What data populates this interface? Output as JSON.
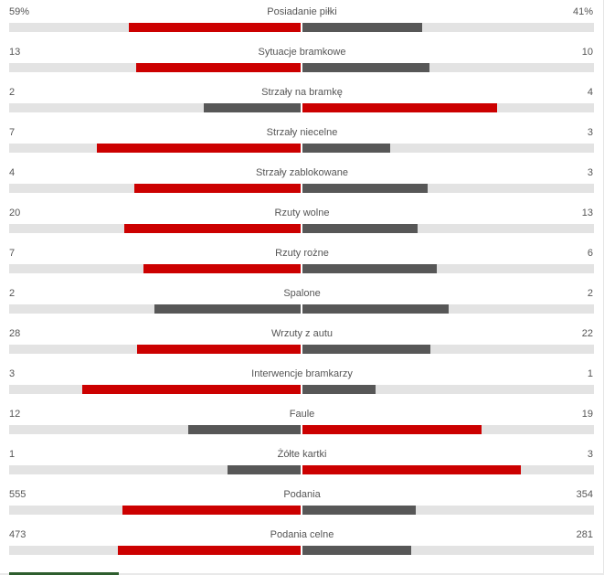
{
  "colors": {
    "leader": "#cc0000",
    "trailer": "#575757",
    "track": "#e3e3e3"
  },
  "stats": [
    {
      "label": "Posiadanie piłki",
      "home": "59%",
      "away": "41%",
      "home_share": 0.59,
      "away_share": 0.41
    },
    {
      "label": "Sytuacje bramkowe",
      "home": "13",
      "away": "10",
      "home_share": 0.565,
      "away_share": 0.435
    },
    {
      "label": "Strzały na bramkę",
      "home": "2",
      "away": "4",
      "home_share": 0.333,
      "away_share": 0.667
    },
    {
      "label": "Strzały niecelne",
      "home": "7",
      "away": "3",
      "home_share": 0.7,
      "away_share": 0.3
    },
    {
      "label": "Strzały zablokowane",
      "home": "4",
      "away": "3",
      "home_share": 0.571,
      "away_share": 0.429
    },
    {
      "label": "Rzuty wolne",
      "home": "20",
      "away": "13",
      "home_share": 0.606,
      "away_share": 0.394
    },
    {
      "label": "Rzuty rożne",
      "home": "7",
      "away": "6",
      "home_share": 0.538,
      "away_share": 0.462
    },
    {
      "label": "Spalone",
      "home": "2",
      "away": "2",
      "home_share": 0.5,
      "away_share": 0.5
    },
    {
      "label": "Wrzuty z autu",
      "home": "28",
      "away": "22",
      "home_share": 0.56,
      "away_share": 0.44
    },
    {
      "label": "Interwencje bramkarzy",
      "home": "3",
      "away": "1",
      "home_share": 0.75,
      "away_share": 0.25
    },
    {
      "label": "Faule",
      "home": "12",
      "away": "19",
      "home_share": 0.387,
      "away_share": 0.613
    },
    {
      "label": "Żółte kartki",
      "home": "1",
      "away": "3",
      "home_share": 0.25,
      "away_share": 0.75
    },
    {
      "label": "Podania",
      "home": "555",
      "away": "354",
      "home_share": 0.611,
      "away_share": 0.389
    },
    {
      "label": "Podania celne",
      "home": "473",
      "away": "281",
      "home_share": 0.627,
      "away_share": 0.373
    }
  ]
}
